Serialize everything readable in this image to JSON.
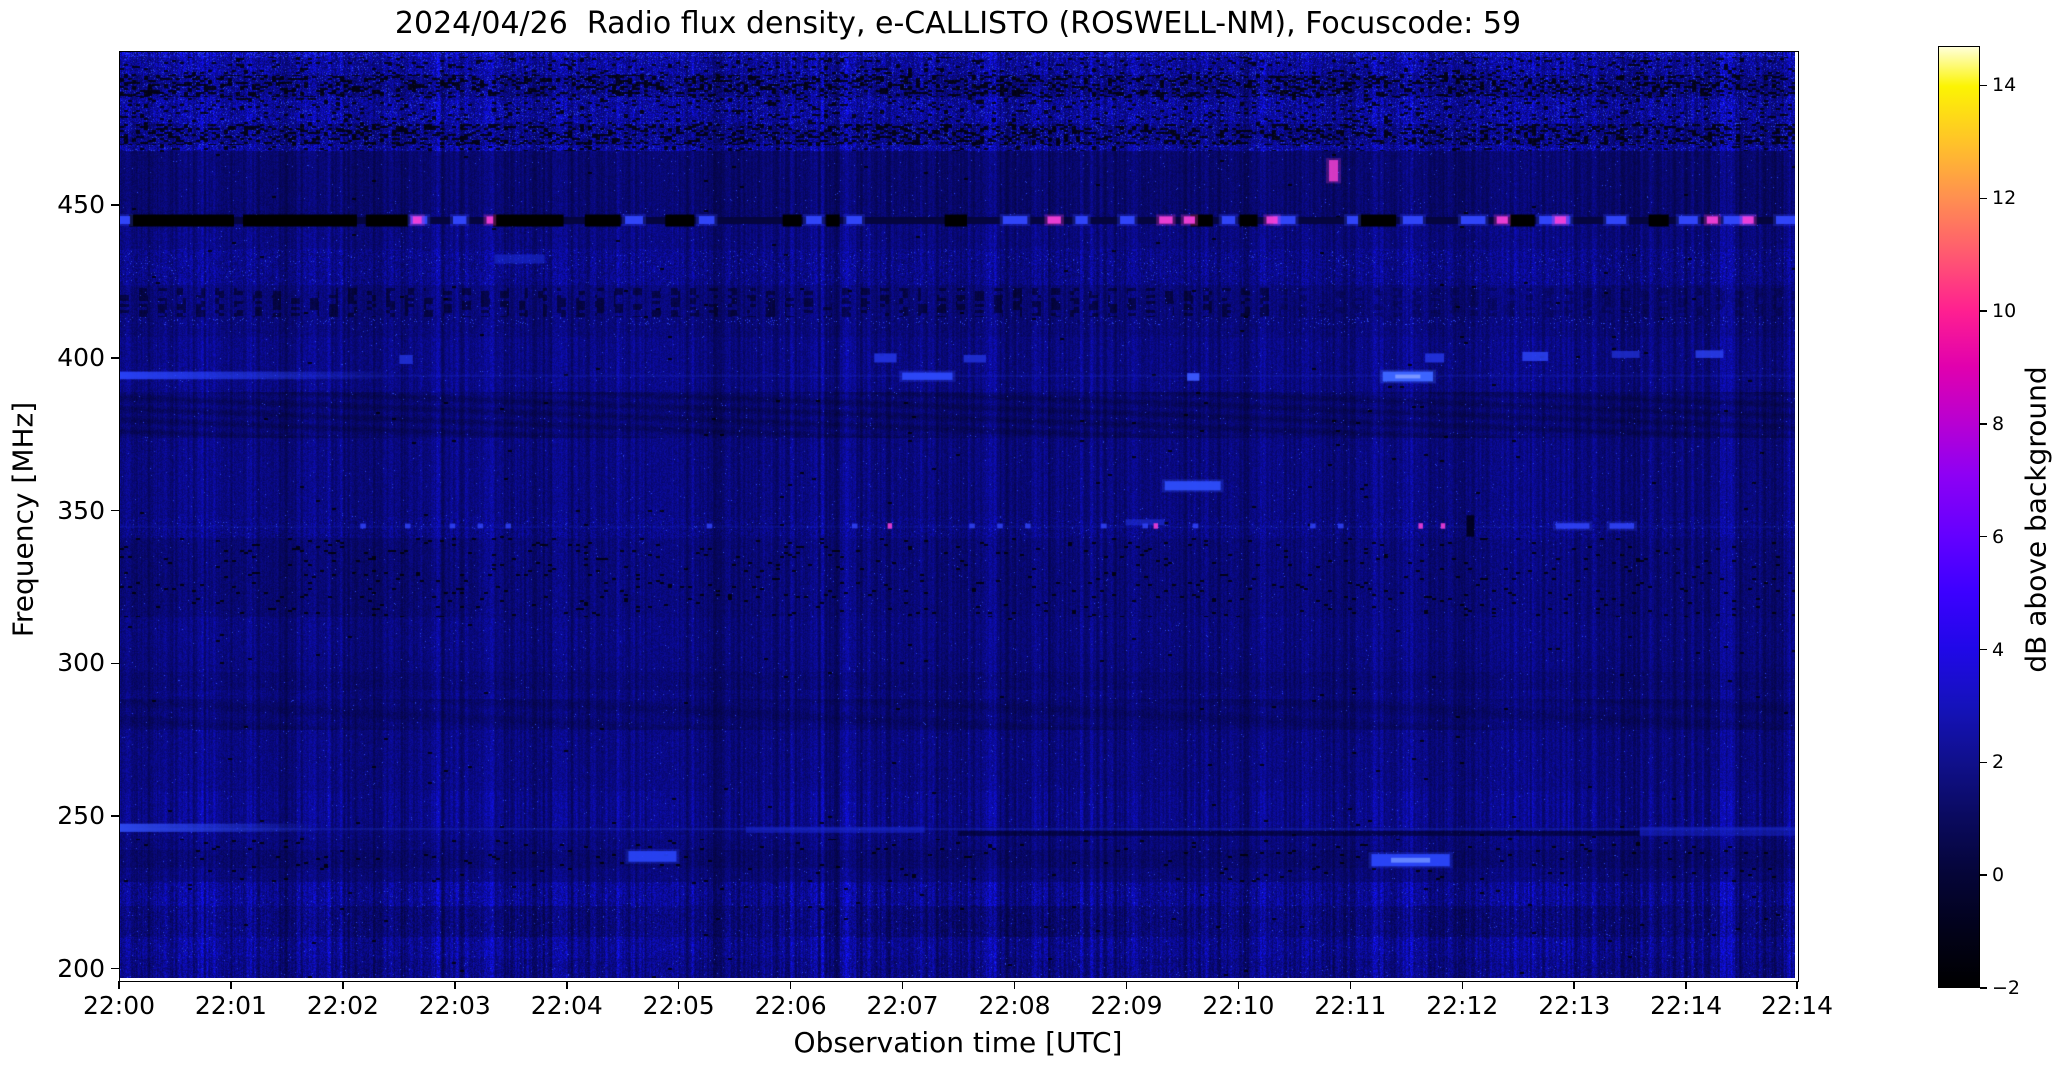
{
  "figure": {
    "title": "2024/04/26  Radio flux density, e-CALLISTO (ROSWELL-NM), Focuscode: 59",
    "background_color": "#ffffff"
  },
  "chart_data": {
    "type": "heatmap",
    "subtype": "radio-spectrogram",
    "title": "2024/04/26  Radio flux density, e-CALLISTO (ROSWELL-NM), Focuscode: 59",
    "xlabel": "Observation time [UTC]",
    "ylabel": "Frequency [MHz]",
    "x_ticks": [
      {
        "label": "22:00",
        "minute": 0
      },
      {
        "label": "22:01",
        "minute": 1
      },
      {
        "label": "22:02",
        "minute": 2
      },
      {
        "label": "22:03",
        "minute": 3
      },
      {
        "label": "22:04",
        "minute": 4
      },
      {
        "label": "22:05",
        "minute": 5
      },
      {
        "label": "22:06",
        "minute": 6
      },
      {
        "label": "22:07",
        "minute": 7
      },
      {
        "label": "22:08",
        "minute": 8
      },
      {
        "label": "22:09",
        "minute": 9
      },
      {
        "label": "22:10",
        "minute": 10
      },
      {
        "label": "22:11",
        "minute": 11
      },
      {
        "label": "22:12",
        "minute": 12
      },
      {
        "label": "22:13",
        "minute": 13
      },
      {
        "label": "22:14",
        "minute": 14
      },
      {
        "label": "22:14",
        "minute": 14.99
      }
    ],
    "x_range_minutes": [
      0,
      14.99
    ],
    "y_ticks_mhz": [
      450,
      400,
      350,
      300,
      250,
      200
    ],
    "y_range_mhz": [
      196.3,
      500.5
    ],
    "grid": false,
    "colorbar": {
      "label": "dB above background",
      "ticks": [
        "14",
        "12",
        "10",
        "8",
        "6",
        "4",
        "2",
        "0",
        "−2"
      ],
      "tick_values": [
        14,
        12,
        10,
        8,
        6,
        4,
        2,
        0,
        -2
      ],
      "vmin": -2,
      "vmax": 14.7,
      "colormap": "gnuplot2-like",
      "stops": [
        [
          0.0,
          "#000000"
        ],
        [
          0.06,
          "#02021a"
        ],
        [
          0.12,
          "#050538"
        ],
        [
          0.18,
          "#0a0a5e"
        ],
        [
          0.24,
          "#10108c"
        ],
        [
          0.3,
          "#1512bc"
        ],
        [
          0.36,
          "#2008e8"
        ],
        [
          0.42,
          "#3c00ff"
        ],
        [
          0.48,
          "#6400ff"
        ],
        [
          0.545,
          "#8e00f4"
        ],
        [
          0.6,
          "#b800d2"
        ],
        [
          0.66,
          "#e100ae"
        ],
        [
          0.72,
          "#ff2090"
        ],
        [
          0.78,
          "#ff5a70"
        ],
        [
          0.84,
          "#ff9050"
        ],
        [
          0.9,
          "#ffc428"
        ],
        [
          0.958,
          "#fcf403"
        ],
        [
          1.0,
          "#ffffd8"
        ]
      ]
    },
    "background_texture": {
      "base_color": "#0c0c94",
      "stripe_bright": "#1414be",
      "speckle_bright": "#3b4bff",
      "dark_patch": "#020228"
    },
    "bands": [
      {
        "f": [
          499,
          500.5
        ],
        "kind": "top-speckle"
      },
      {
        "f": [
          468,
          499
        ],
        "kind": "mottle-strong",
        "dark_rows": [
          [
            470,
            477
          ],
          [
            486,
            493
          ]
        ]
      },
      {
        "f": [
          445.5,
          449.5
        ],
        "kind": "dim"
      },
      {
        "f": [
          424,
          436
        ],
        "kind": "speckle-mild",
        "bright_row": [
          431,
          434
        ]
      },
      {
        "f": [
          407,
          424
        ],
        "kind": "periodic-mottle",
        "dot_row": [
          411,
          413.5
        ],
        "fade_after_min": 10.3
      },
      {
        "f": [
          374,
          386
        ],
        "kind": "wavy-dark"
      },
      {
        "f": [
          341,
          348
        ],
        "kind": "speckle-row",
        "bright_row": [
          343.5,
          346.5
        ]
      },
      {
        "f": [
          315,
          334
        ],
        "kind": "patchy-dark"
      },
      {
        "f": [
          288,
          304
        ],
        "kind": "dim-rows",
        "dark_row": [
          291,
          297
        ]
      },
      {
        "f": [
          278,
          288
        ],
        "kind": "wavy-dark"
      },
      {
        "f": [
          246,
          258
        ],
        "kind": "stripes-bright"
      },
      {
        "f": [
          228,
          242
        ],
        "kind": "patchy-dark",
        "dark_row": [
          232.5,
          238.5
        ]
      },
      {
        "f": [
          196.3,
          228
        ],
        "kind": "stripes-strong",
        "dark_row": [
          210,
          220
        ]
      }
    ],
    "rfi_line_445": {
      "freq_mhz": 445.3,
      "black_segments_min": [
        [
          0.08,
          1.02
        ],
        [
          1.1,
          2.12
        ],
        [
          2.2,
          2.58
        ],
        [
          3.34,
          3.97
        ],
        [
          4.16,
          4.48
        ],
        [
          4.88,
          5.14
        ],
        [
          5.93,
          6.1
        ],
        [
          6.32,
          6.44
        ],
        [
          7.38,
          7.58
        ],
        [
          9.58,
          9.78
        ],
        [
          10.02,
          10.18
        ],
        [
          11.08,
          11.42
        ],
        [
          12.44,
          12.66
        ],
        [
          13.68,
          13.86
        ]
      ],
      "bright_segments_min": [
        [
          0.0,
          0.09
        ],
        [
          2.6,
          2.75
        ],
        [
          2.98,
          3.1
        ],
        [
          4.52,
          4.68
        ],
        [
          5.18,
          5.32
        ],
        [
          6.14,
          6.28
        ],
        [
          6.5,
          6.64
        ],
        [
          7.9,
          8.12
        ],
        [
          8.55,
          8.66
        ],
        [
          8.95,
          9.08
        ],
        [
          9.86,
          9.98
        ],
        [
          10.32,
          10.52
        ],
        [
          10.98,
          11.08
        ],
        [
          11.48,
          11.66
        ],
        [
          12.0,
          12.22
        ],
        [
          12.7,
          12.98
        ],
        [
          13.3,
          13.48
        ],
        [
          13.95,
          14.12
        ],
        [
          14.35,
          14.6
        ],
        [
          14.82,
          14.99
        ]
      ],
      "magenta_blips_min": [
        [
          2.62,
          2.7
        ],
        [
          3.28,
          3.34
        ],
        [
          8.3,
          8.42
        ],
        [
          9.3,
          9.42
        ],
        [
          9.52,
          9.62
        ],
        [
          10.26,
          10.36
        ],
        [
          12.32,
          12.42
        ],
        [
          12.84,
          12.94
        ],
        [
          14.2,
          14.3
        ],
        [
          14.52,
          14.62
        ]
      ],
      "blue_color": "#3347ff",
      "magenta_color": "#f23fd8"
    },
    "pink_dash": {
      "t_min": [
        10.82,
        10.9
      ],
      "f_mhz": [
        458,
        465
      ],
      "color": "#ee3fd0"
    },
    "blobs": [
      {
        "t": [
          2.5,
          2.62
        ],
        "f": [
          398,
          401
        ],
        "c": "#2334e0",
        "a": 0.8
      },
      {
        "t": [
          3.35,
          3.8
        ],
        "f": [
          431,
          434
        ],
        "c": "#1b2bd6",
        "a": 0.6
      },
      {
        "t": [
          6.75,
          6.95
        ],
        "f": [
          398.5,
          401.5
        ],
        "c": "#2436e8",
        "a": 0.85
      },
      {
        "t": [
          7.0,
          7.45
        ],
        "f": [
          392.8,
          395.2
        ],
        "c": "#2f4bff",
        "a": 0.9,
        "glow": true
      },
      {
        "t": [
          7.55,
          7.75
        ],
        "f": [
          398.5,
          401
        ],
        "c": "#2334e0",
        "a": 0.8
      },
      {
        "t": [
          9.55,
          9.66
        ],
        "f": [
          392.5,
          395
        ],
        "c": "#3c5aff",
        "a": 0.95
      },
      {
        "t": [
          11.3,
          11.75
        ],
        "f": [
          392.3,
          395.5
        ],
        "c": "#3c64ff",
        "a": 1,
        "glow": true,
        "core": "#7a96ff"
      },
      {
        "t": [
          11.68,
          11.85
        ],
        "f": [
          398.5,
          401.5
        ],
        "c": "#2436e8",
        "a": 0.85
      },
      {
        "t": [
          12.55,
          12.78
        ],
        "f": [
          399,
          402
        ],
        "c": "#2d44f5",
        "a": 0.85
      },
      {
        "t": [
          13.35,
          13.6
        ],
        "f": [
          400,
          402.3
        ],
        "c": "#2334e0",
        "a": 0.7
      },
      {
        "t": [
          14.1,
          14.35
        ],
        "f": [
          400,
          402.5
        ],
        "c": "#2d44f5",
        "a": 0.8
      },
      {
        "t": [
          9.35,
          9.85
        ],
        "f": [
          356.5,
          359.5
        ],
        "c": "#3050ff",
        "a": 0.9,
        "glow": true
      },
      {
        "t": [
          9.0,
          9.35
        ],
        "f": [
          345,
          347
        ],
        "c": "#2334e0",
        "a": 0.55
      },
      {
        "t": [
          4.55,
          4.98
        ],
        "f": [
          234.5,
          238
        ],
        "c": "#2c48ff",
        "a": 0.85,
        "glow": true
      },
      {
        "t": [
          11.2,
          11.9
        ],
        "f": [
          233,
          237
        ],
        "c": "#2c48ff",
        "a": 0.9,
        "glow": true,
        "core": "#6a8cff"
      },
      {
        "t": [
          5.6,
          7.2
        ],
        "f": [
          244,
          246
        ],
        "c": "#1c2cd8",
        "a": 0.5
      },
      {
        "t": [
          13.6,
          14.99
        ],
        "f": [
          243,
          246
        ],
        "c": "#1c2cd8",
        "a": 0.45
      }
    ],
    "fading_lines": [
      {
        "t": [
          0,
          2.5
        ],
        "f": [
          393,
          395.5
        ],
        "c": "#2b46ff",
        "a_start": 0.9,
        "a_end": 0
      },
      {
        "t": [
          0,
          1.8
        ],
        "f": [
          244.3,
          247
        ],
        "c": "#2e4af0",
        "a_start": 0.95,
        "a_end": 0
      }
    ],
    "faint_full_lines": [
      {
        "f": 394.2,
        "a": 0.14,
        "c": "#2b46ff"
      },
      {
        "f": 245.3,
        "a": 0.22,
        "c": "#2b46ff"
      },
      {
        "f": 344.6,
        "a": 0.1,
        "c": "#2b46ff"
      }
    ],
    "dark_wavy_line": {
      "t": [
        7.5,
        13.6
      ],
      "f": [
        243,
        244.6
      ],
      "c": "#000020",
      "a": 0.55
    },
    "dots_345": {
      "f_mhz": 344.8,
      "blue_times_min": [
        2.15,
        2.55,
        2.95,
        3.2,
        3.45,
        5.25,
        6.55,
        7.6,
        7.85,
        8.1,
        8.78,
        9.15,
        9.6,
        10.65,
        10.9
      ],
      "blue_dash_segments_min": [
        [
          12.85,
          13.15
        ],
        [
          13.33,
          13.55
        ]
      ],
      "magenta_times_min": [
        6.87,
        9.25,
        11.62,
        11.82
      ],
      "black_tick_min": [
        12.05,
        12.12
      ],
      "blue_color": "#3347ff",
      "magenta_color": "#f23fd8"
    }
  }
}
